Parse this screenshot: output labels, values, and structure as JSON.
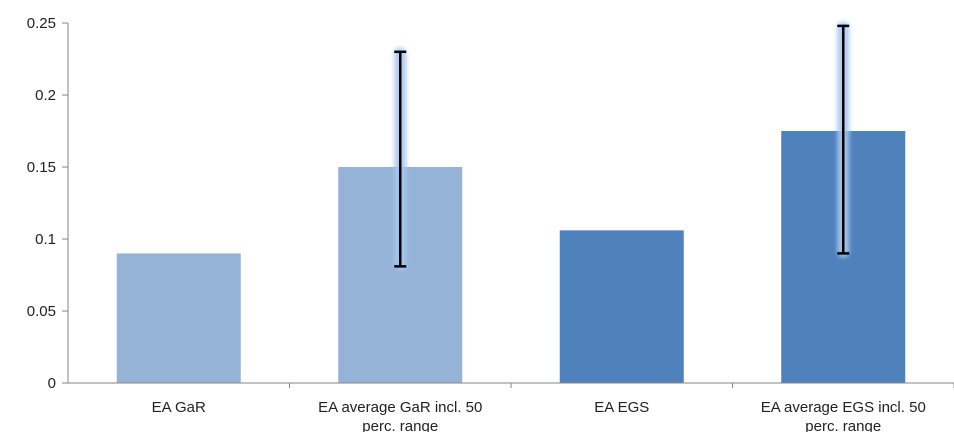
{
  "chart_data": {
    "type": "bar",
    "title": "",
    "xlabel": "",
    "ylabel": "",
    "ylim": [
      0,
      0.25
    ],
    "yticks": [
      {
        "value": 0,
        "label": "0"
      },
      {
        "value": 0.05,
        "label": "0.05"
      },
      {
        "value": 0.1,
        "label": "0.1"
      },
      {
        "value": 0.15,
        "label": "0.15"
      },
      {
        "value": 0.2,
        "label": "0.2"
      },
      {
        "value": 0.25,
        "label": "0.25"
      }
    ],
    "grid": false,
    "legend": "none",
    "categories": [
      [
        "EA GaR"
      ],
      [
        "EA average GaR incl. 50",
        "perc. range"
      ],
      [
        "EA EGS"
      ],
      [
        "EA average EGS incl. 50",
        "perc. range"
      ]
    ],
    "values": [
      0.09,
      0.15,
      0.106,
      0.175
    ],
    "error_bars": [
      null,
      {
        "low": 0.081,
        "high": 0.23
      },
      null,
      {
        "low": 0.09,
        "high": 0.248
      }
    ],
    "colors": [
      "#95b3d7",
      "#95b3d7",
      "#4f81bd",
      "#4f81bd"
    ],
    "axis_color": "#868686",
    "error_bar_color": "#000000",
    "error_glow_color": "#a6c8ee"
  }
}
